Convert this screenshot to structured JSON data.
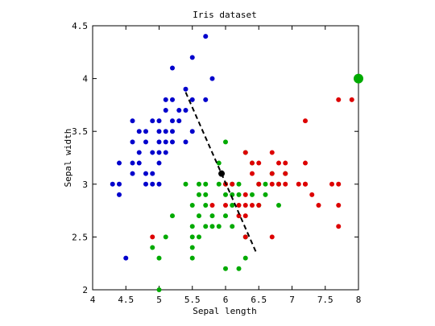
{
  "chart_data": {
    "type": "scatter",
    "title": "Iris dataset",
    "xlabel": "Sepal length",
    "ylabel": "Sepal width",
    "xlim": [
      4,
      8
    ],
    "ylim": [
      2,
      4.5
    ],
    "xticks": [
      "4",
      "4.5",
      "5",
      "5.5",
      "6",
      "6.5",
      "7",
      "7.5",
      "8"
    ],
    "yticks": [
      "2",
      "2.5",
      "3",
      "3.5",
      "4",
      "4.5"
    ],
    "grid": false,
    "series": [
      {
        "color": "#0000cc",
        "points": [
          [
            5.7,
            4.4
          ],
          [
            5.5,
            4.2
          ],
          [
            5.2,
            4.1
          ],
          [
            5.8,
            4.0
          ],
          [
            5.4,
            3.9
          ],
          [
            5.1,
            3.8
          ],
          [
            5.7,
            3.8
          ],
          [
            5.2,
            3.8
          ],
          [
            4.6,
            3.6
          ],
          [
            5.0,
            3.6
          ],
          [
            5.1,
            3.7
          ],
          [
            5.3,
            3.7
          ],
          [
            4.9,
            3.6
          ],
          [
            5.4,
            3.7
          ],
          [
            4.8,
            3.5
          ],
          [
            5.0,
            3.5
          ],
          [
            5.1,
            3.5
          ],
          [
            5.2,
            3.5
          ],
          [
            5.5,
            3.5
          ],
          [
            4.6,
            3.4
          ],
          [
            4.8,
            3.4
          ],
          [
            5.0,
            3.4
          ],
          [
            5.1,
            3.4
          ],
          [
            5.2,
            3.4
          ],
          [
            5.4,
            3.4
          ],
          [
            4.7,
            3.2
          ],
          [
            4.6,
            3.2
          ],
          [
            5.0,
            3.3
          ],
          [
            5.1,
            3.3
          ],
          [
            4.4,
            3.2
          ],
          [
            4.7,
            3.3
          ],
          [
            4.9,
            3.3
          ],
          [
            5.0,
            3.2
          ],
          [
            4.6,
            3.1
          ],
          [
            4.8,
            3.1
          ],
          [
            4.9,
            3.1
          ],
          [
            4.4,
            3.0
          ],
          [
            4.3,
            3.0
          ],
          [
            4.8,
            3.0
          ],
          [
            4.9,
            3.0
          ],
          [
            5.0,
            3.0
          ],
          [
            4.4,
            2.9
          ],
          [
            4.5,
            2.3
          ],
          [
            5.2,
            3.6
          ],
          [
            4.7,
            3.5
          ],
          [
            5.3,
            3.6
          ],
          [
            5.5,
            3.8
          ]
        ]
      },
      {
        "color": "#00aa00",
        "points": [
          [
            6.0,
            3.4
          ],
          [
            5.9,
            3.2
          ],
          [
            6.3,
            3.3
          ],
          [
            6.1,
            3.0
          ],
          [
            6.4,
            3.2
          ],
          [
            6.7,
            3.1
          ],
          [
            6.9,
            3.1
          ],
          [
            5.6,
            3.0
          ],
          [
            5.7,
            3.0
          ],
          [
            5.9,
            3.0
          ],
          [
            6.0,
            3.0
          ],
          [
            6.2,
            3.0
          ],
          [
            5.4,
            3.0
          ],
          [
            6.6,
            3.0
          ],
          [
            5.6,
            2.9
          ],
          [
            6.0,
            2.9
          ],
          [
            6.1,
            2.9
          ],
          [
            6.2,
            2.9
          ],
          [
            6.4,
            2.9
          ],
          [
            6.6,
            2.9
          ],
          [
            5.5,
            2.8
          ],
          [
            5.7,
            2.8
          ],
          [
            6.1,
            2.8
          ],
          [
            6.5,
            2.8
          ],
          [
            6.8,
            2.8
          ],
          [
            5.8,
            2.7
          ],
          [
            5.6,
            2.7
          ],
          [
            6.0,
            2.7
          ],
          [
            5.2,
            2.7
          ],
          [
            5.5,
            2.6
          ],
          [
            5.7,
            2.6
          ],
          [
            5.8,
            2.6
          ],
          [
            5.5,
            2.5
          ],
          [
            5.6,
            2.5
          ],
          [
            6.3,
            2.5
          ],
          [
            5.1,
            2.5
          ],
          [
            4.9,
            2.4
          ],
          [
            5.5,
            2.4
          ],
          [
            5.0,
            2.3
          ],
          [
            6.3,
            2.3
          ],
          [
            5.5,
            2.3
          ],
          [
            6.0,
            2.2
          ],
          [
            6.2,
            2.2
          ],
          [
            5.0,
            2.0
          ],
          [
            6.5,
            3.0
          ],
          [
            6.8,
            3.0
          ],
          [
            6.1,
            2.6
          ],
          [
            5.9,
            2.6
          ],
          [
            5.7,
            2.9
          ]
        ]
      },
      {
        "color": "#dd0000",
        "points": [
          [
            7.9,
            3.8
          ],
          [
            7.7,
            3.8
          ],
          [
            7.2,
            3.6
          ],
          [
            6.3,
            3.3
          ],
          [
            6.7,
            3.3
          ],
          [
            7.2,
            3.2
          ],
          [
            6.4,
            3.2
          ],
          [
            6.9,
            3.2
          ],
          [
            6.5,
            3.2
          ],
          [
            6.8,
            3.2
          ],
          [
            6.7,
            3.1
          ],
          [
            6.9,
            3.1
          ],
          [
            6.4,
            3.1
          ],
          [
            7.7,
            3.0
          ],
          [
            7.1,
            3.0
          ],
          [
            7.2,
            3.0
          ],
          [
            6.5,
            3.0
          ],
          [
            6.8,
            3.0
          ],
          [
            6.0,
            3.0
          ],
          [
            6.1,
            3.0
          ],
          [
            7.6,
            3.0
          ],
          [
            6.3,
            2.9
          ],
          [
            7.3,
            2.9
          ],
          [
            6.2,
            2.8
          ],
          [
            6.4,
            2.8
          ],
          [
            7.7,
            2.8
          ],
          [
            7.4,
            2.8
          ],
          [
            6.3,
            2.8
          ],
          [
            6.5,
            2.8
          ],
          [
            7.7,
            2.6
          ],
          [
            6.7,
            2.5
          ],
          [
            6.3,
            2.5
          ],
          [
            4.9,
            2.5
          ],
          [
            6.3,
            2.7
          ],
          [
            5.8,
            2.8
          ],
          [
            6.0,
            2.8
          ],
          [
            6.9,
            3.0
          ],
          [
            6.7,
            3.0
          ],
          [
            7.2,
            3.0
          ],
          [
            6.2,
            2.7
          ]
        ]
      }
    ],
    "highlight_point": {
      "x": 8.0,
      "y": 4.0,
      "color": "#00aa00"
    },
    "center_point": {
      "x": 5.94,
      "y": 3.1,
      "color": "#000000"
    },
    "dashed_line": {
      "x1": 5.4,
      "y1": 3.87,
      "x2": 6.47,
      "y2": 2.34,
      "color": "#000000"
    }
  }
}
